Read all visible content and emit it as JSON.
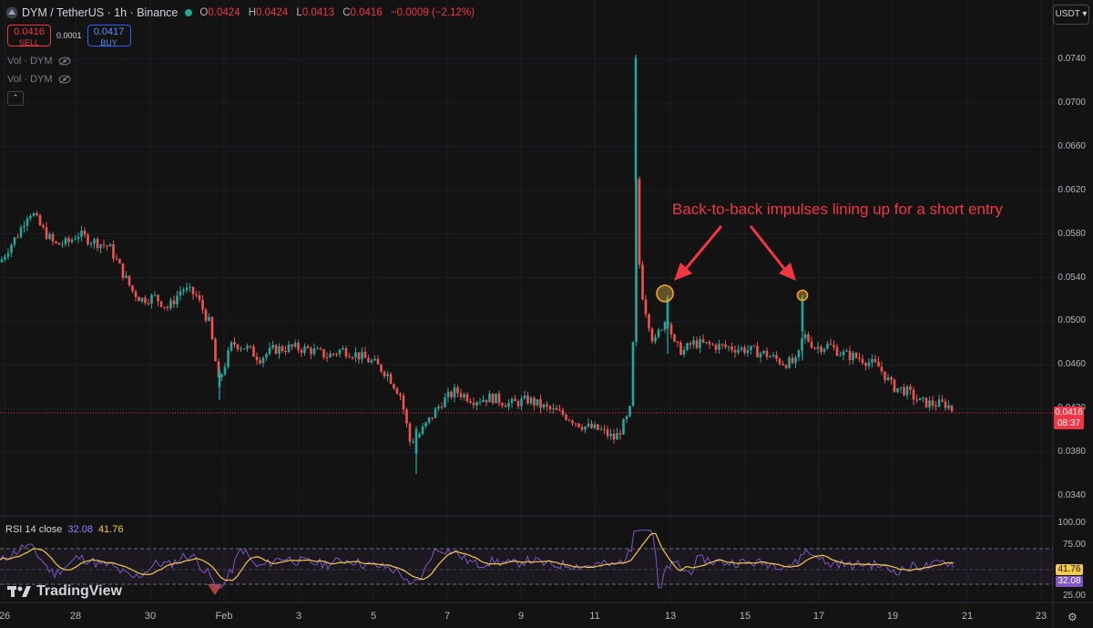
{
  "header": {
    "symbol": "DYM / TetherUS · 1h · Binance",
    "ohlc": {
      "O": "0.0424",
      "H": "0.0424",
      "L": "0.0413",
      "C": "0.0416",
      "change": "−0.0009 (−2.12%)"
    }
  },
  "trade": {
    "sell_price": "0.0416",
    "sell_label": "SELL",
    "spread": "0.0001",
    "buy_price": "0.0417",
    "buy_label": "BUY"
  },
  "indicators": {
    "vol1": "Vol · DYM",
    "vol2": "Vol · DYM"
  },
  "currency_button": "USDT ▾",
  "current_price": {
    "price": "0.0416",
    "countdown": "08:37"
  },
  "annotation": "Back-to-back impulses lining up for a short entry",
  "rsi": {
    "name": "RSI",
    "length": "14",
    "source": "close",
    "value1": "32.08",
    "value2": "41.76",
    "levels": [
      "100.00",
      "75.00",
      "25.00"
    ]
  },
  "brand": "TradingView",
  "colors": {
    "up": "#26a69a",
    "down": "#ef5350",
    "rsi": "#7e57c2",
    "rsi_ma": "#f7c948",
    "accent": "#f23645"
  },
  "icons": {
    "settings": "gear-icon",
    "visibility": "eye-off-icon"
  },
  "chart_data": {
    "type": "candlestick",
    "y_axis": {
      "ticks": [
        "0.0740",
        "0.0700",
        "0.0660",
        "0.0620",
        "0.0580",
        "0.0540",
        "0.0500",
        "0.0460",
        "0.0420",
        "0.0380",
        "0.0340"
      ],
      "range": [
        0.0316,
        0.0757
      ]
    },
    "x_axis": {
      "ticks": [
        "26",
        "28",
        "30",
        "Feb",
        "3",
        "5",
        "7",
        "9",
        "11",
        "13",
        "15",
        "17",
        "19",
        "21",
        "23"
      ]
    },
    "price_path": [
      [
        0,
        0.0554
      ],
      [
        10,
        0.0568
      ],
      [
        20,
        0.058
      ],
      [
        30,
        0.0598
      ],
      [
        35,
        0.06
      ],
      [
        45,
        0.0586
      ],
      [
        60,
        0.057
      ],
      [
        75,
        0.0572
      ],
      [
        85,
        0.058
      ],
      [
        100,
        0.0574
      ],
      [
        120,
        0.0568
      ],
      [
        130,
        0.0552
      ],
      [
        145,
        0.0528
      ],
      [
        155,
        0.052
      ],
      [
        170,
        0.0522
      ],
      [
        185,
        0.0512
      ],
      [
        200,
        0.053
      ],
      [
        215,
        0.0524
      ],
      [
        230,
        0.0498
      ],
      [
        240,
        0.0444
      ],
      [
        255,
        0.048
      ],
      [
        270,
        0.0476
      ],
      [
        285,
        0.0466
      ],
      [
        300,
        0.0474
      ],
      [
        320,
        0.0476
      ],
      [
        340,
        0.0474
      ],
      [
        360,
        0.0468
      ],
      [
        375,
        0.0474
      ],
      [
        390,
        0.047
      ],
      [
        410,
        0.0462
      ],
      [
        425,
        0.0452
      ],
      [
        440,
        0.0432
      ],
      [
        450,
        0.039
      ],
      [
        460,
        0.0396
      ],
      [
        475,
        0.0414
      ],
      [
        485,
        0.0426
      ],
      [
        500,
        0.0436
      ],
      [
        520,
        0.0428
      ],
      [
        540,
        0.043
      ],
      [
        560,
        0.0424
      ],
      [
        580,
        0.0428
      ],
      [
        600,
        0.042
      ],
      [
        620,
        0.0414
      ],
      [
        640,
        0.0404
      ],
      [
        660,
        0.04
      ],
      [
        675,
        0.0392
      ],
      [
        688,
        0.041
      ],
      [
        694,
        0.0424
      ],
      [
        698,
        0.064
      ],
      [
        701,
        0.056
      ],
      [
        706,
        0.052
      ],
      [
        712,
        0.05
      ],
      [
        718,
        0.0478
      ],
      [
        725,
        0.0494
      ],
      [
        733,
        0.0504
      ],
      [
        740,
        0.0478
      ],
      [
        750,
        0.0472
      ],
      [
        760,
        0.048
      ],
      [
        780,
        0.0478
      ],
      [
        800,
        0.0476
      ],
      [
        820,
        0.0474
      ],
      [
        840,
        0.047
      ],
      [
        860,
        0.0462
      ],
      [
        875,
        0.0462
      ],
      [
        882,
        0.0488
      ],
      [
        895,
        0.0476
      ],
      [
        910,
        0.0478
      ],
      [
        925,
        0.047
      ],
      [
        945,
        0.0466
      ],
      [
        965,
        0.0458
      ],
      [
        980,
        0.044
      ],
      [
        995,
        0.0436
      ],
      [
        1010,
        0.0426
      ],
      [
        1025,
        0.0424
      ],
      [
        1040,
        0.0424
      ],
      [
        1048,
        0.0416
      ]
    ],
    "spikes": [
      [
        698,
        0.0744,
        0.052
      ],
      [
        733,
        0.0524,
        0.047
      ],
      [
        881,
        0.0524,
        0.0464
      ],
      [
        457,
        0.0404,
        0.036
      ],
      [
        241,
        0.0458,
        0.0428
      ]
    ]
  }
}
